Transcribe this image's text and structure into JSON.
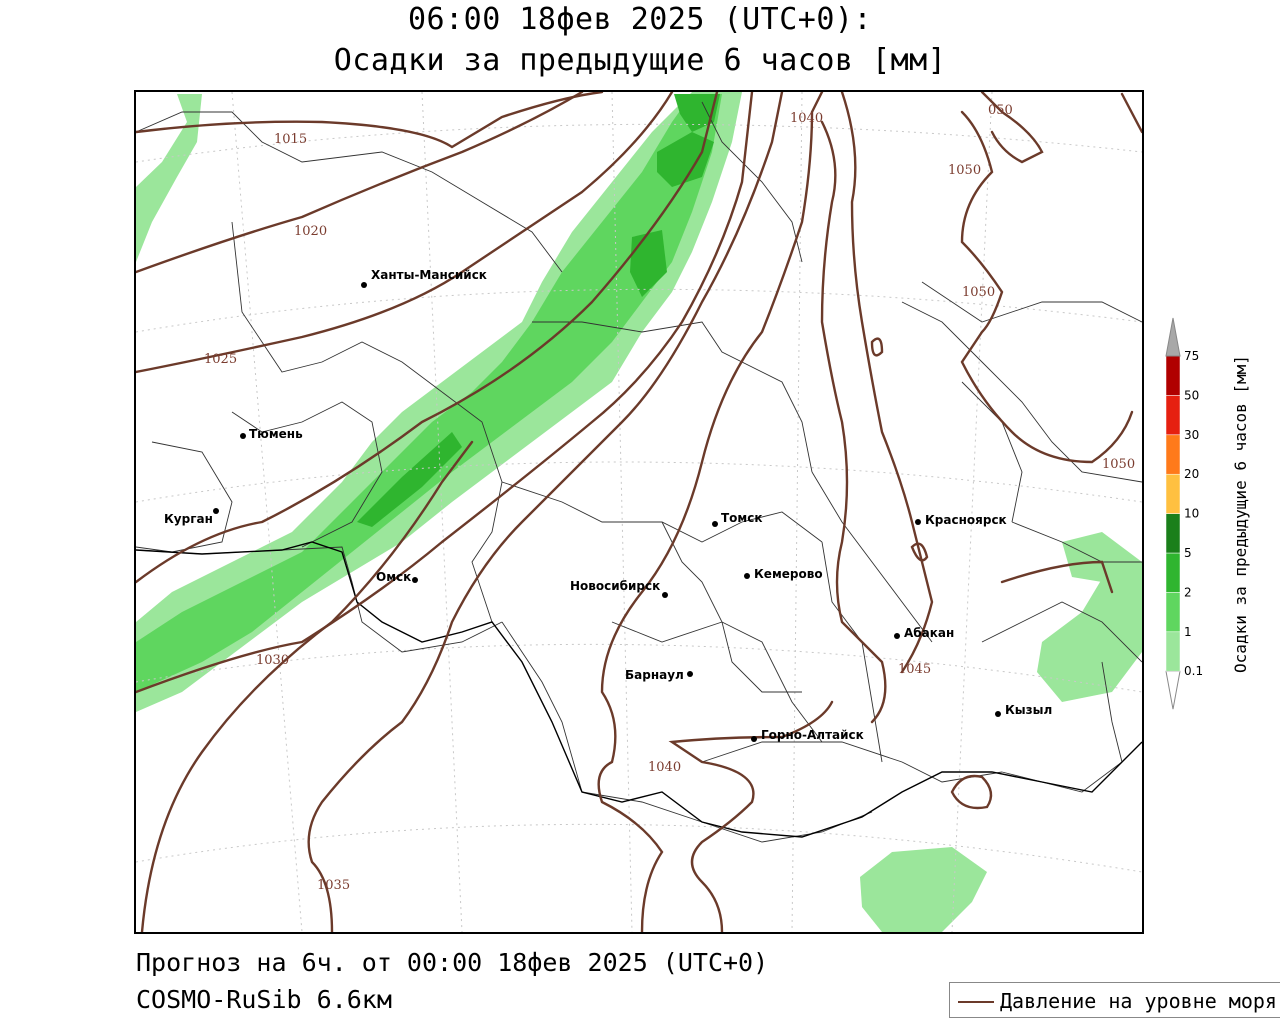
{
  "header": {
    "title_line1": "06:00 18фев 2025 (UTC+0):",
    "title_line2": "Осадки за предыдущие 6 часов [мм]"
  },
  "footer": {
    "forecast": "Прогноз на 6ч. от 00:00 18фев 2025 (UTC+0)",
    "model": "COSMO-RuSib 6.6км"
  },
  "legend": {
    "pressure_label": "Давление на уровне моря",
    "pressure_color": "#6b3a2a"
  },
  "colorbar": {
    "title": "Осадки за предыдущие 6 часов [мм]",
    "levels": [
      "0.1",
      "1",
      "2",
      "5",
      "10",
      "20",
      "30",
      "50",
      "75"
    ],
    "colors": [
      "#9be69b",
      "#5fd65f",
      "#2fb52f",
      "#1a7f1a",
      "#ffc040",
      "#ff7a1a",
      "#e62010",
      "#b00000",
      "#a8a8a8"
    ]
  },
  "map": {
    "cities": [
      {
        "name": "Ханты-Мансийск"
      },
      {
        "name": "Тюмень"
      },
      {
        "name": "Курган"
      },
      {
        "name": "Омск"
      },
      {
        "name": "Томск"
      },
      {
        "name": "Новосибирск"
      },
      {
        "name": "Кемерово"
      },
      {
        "name": "Красноярск"
      },
      {
        "name": "Абакан"
      },
      {
        "name": "Барнаул"
      },
      {
        "name": "Горно-Алтайск"
      },
      {
        "name": "Кызыл"
      }
    ],
    "isobars": [
      {
        "label": "1015"
      },
      {
        "label": "1020"
      },
      {
        "label": "1025"
      },
      {
        "label": "1030"
      },
      {
        "label": "1035"
      },
      {
        "label": "1040"
      },
      {
        "label": "1040"
      },
      {
        "label": "1045"
      },
      {
        "label": "1050"
      },
      {
        "label": "1050"
      },
      {
        "label": "1050"
      },
      {
        "label": "050"
      }
    ]
  }
}
